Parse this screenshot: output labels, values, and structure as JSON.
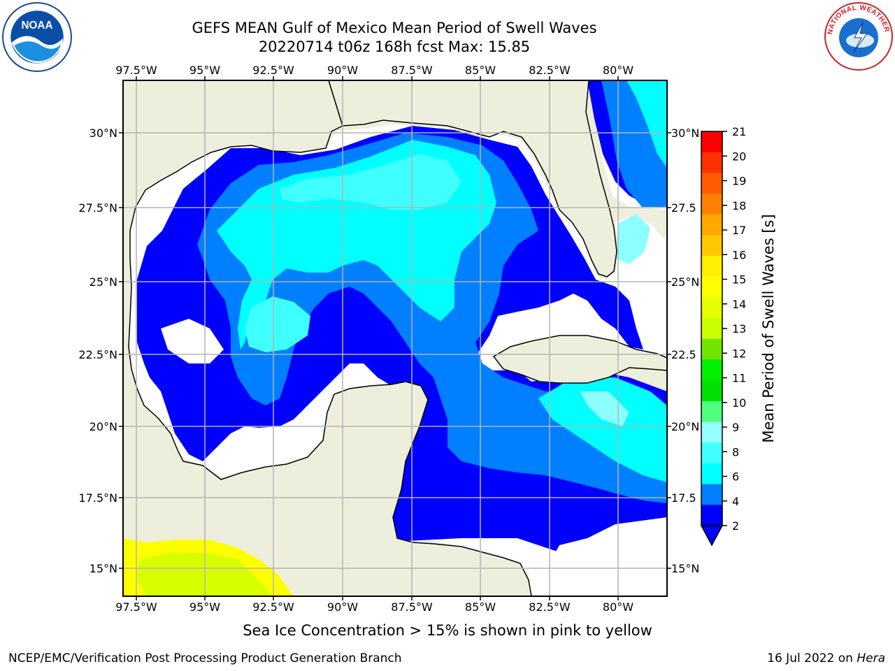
{
  "title": {
    "line1": "GEFS MEAN Gulf of Mexico Mean Period of Swell Waves",
    "line2": "20220714 t06z 168h fcst   Max: 15.85"
  },
  "map": {
    "lon_ticks": [
      "97.5°W",
      "95°W",
      "92.5°W",
      "90°W",
      "87.5°W",
      "85°W",
      "82.5°W",
      "80°W"
    ],
    "lat_ticks_left": [
      "30°N",
      "27.5°N",
      "25°N",
      "22.5°N",
      "20°N",
      "17.5°N",
      "15°N"
    ],
    "lat_ticks_right": [
      "30°N",
      "27.5",
      "25°N",
      "22.5",
      "20°N",
      "17.5",
      "15°N"
    ],
    "colors": {
      "land": "#eeeedc",
      "nodata": "#ffffff",
      "blue": "#0000ff",
      "mid_blue": "#0080ff",
      "light_cyan": "#40ffff",
      "cyan": "#00ffff",
      "pale_cyan": "#8cffff",
      "yellow": "#ffff00",
      "yellow_green": "#d8ff00",
      "grid": "#b4b4b4"
    }
  },
  "colorbar": {
    "label": "Mean Period of Swell Waves [s]",
    "ticks": [
      "21",
      "20",
      "19",
      "18",
      "17",
      "16",
      "15",
      "14",
      "13",
      "12",
      "11",
      "10",
      "9",
      "8",
      "6",
      "4",
      "2"
    ],
    "colors": [
      "#ff0000",
      "#ff3000",
      "#ff5a00",
      "#ff8000",
      "#ffa800",
      "#ffc800",
      "#ffef00",
      "#ffff00",
      "#e6ff00",
      "#c8ff00",
      "#6ee600",
      "#00f000",
      "#00e000",
      "#50ff80",
      "#96ffff",
      "#40ffff",
      "#00ffff",
      "#0080ff",
      "#0000ff"
    ]
  },
  "logos": {
    "noaa": "NOAA",
    "nws": "NATIONAL WEATHER SERVICE"
  },
  "footer": {
    "note": "Sea Ice Concentration > 15% is shown in pink to yellow",
    "left": "NCEP/EMC/Verification Post Processing Product Generation Branch",
    "right_prefix": "16 Jul 2022 on ",
    "right_host": "Hera"
  }
}
